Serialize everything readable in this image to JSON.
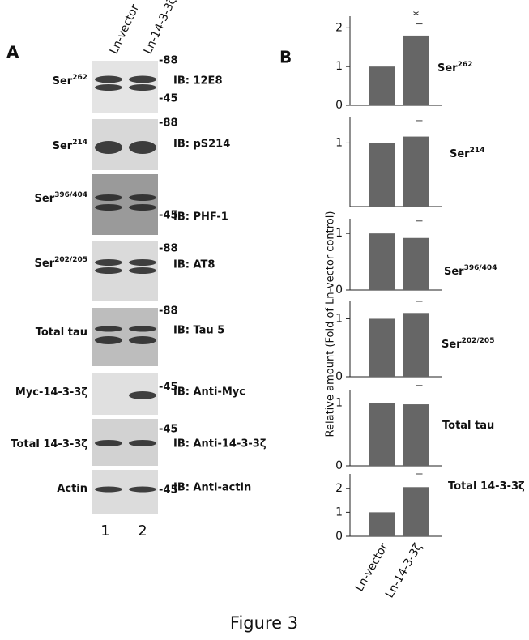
{
  "figure_caption": "Figure 3",
  "panel_a": {
    "label": "A",
    "lanes": [
      "Ln-vector",
      "Ln-14-3-3ζ"
    ],
    "lane_numbers": [
      "1",
      "2"
    ],
    "rows": [
      {
        "target": "Ser",
        "target_sup": "262",
        "markers": [
          "-88",
          "-45"
        ],
        "antibody": "IB: 12E8"
      },
      {
        "target": "Ser",
        "target_sup": "214",
        "markers": [
          "-88"
        ],
        "antibody": "IB: pS214"
      },
      {
        "target": "Ser",
        "target_sup": "396/404",
        "markers": [
          "-45"
        ],
        "antibody": "IB: PHF-1"
      },
      {
        "target": "Ser",
        "target_sup": "202/205",
        "markers": [
          "-88"
        ],
        "antibody": "IB: AT8"
      },
      {
        "target": "Total tau",
        "markers": [
          "-88"
        ],
        "antibody": "IB: Tau 5"
      },
      {
        "target": "Myc-14-3-3ζ",
        "markers": [
          "-45"
        ],
        "antibody": "IB: Anti-Myc"
      },
      {
        "target": "Total 14-3-3ζ",
        "markers": [
          "-45"
        ],
        "antibody": "IB: Anti-14-3-3ζ"
      },
      {
        "target": "Actin",
        "markers": [
          "-45"
        ],
        "antibody": "IB: Anti-actin"
      }
    ]
  },
  "panel_b": {
    "label": "B",
    "y_label": "Relative amount (Fold of Ln-vector control)"
  },
  "chart_data": [
    {
      "type": "bar",
      "label": "Ser",
      "label_sup": "262",
      "annotation": "*",
      "color": "#666666",
      "values": [
        1,
        1.8
      ],
      "errors": [
        null,
        0.3
      ],
      "ylim": [
        0,
        2.3
      ],
      "yticks": [
        0,
        1,
        2
      ]
    },
    {
      "type": "bar",
      "label": "Ser",
      "label_sup": "214",
      "color": "#666666",
      "values": [
        1,
        1.1
      ],
      "errors": [
        null,
        0.25
      ],
      "ylim": [
        0,
        1.4
      ],
      "yticks": [
        1
      ]
    },
    {
      "type": "bar",
      "label": "Ser",
      "label_sup": "396/404",
      "color": "#666666",
      "values": [
        1,
        0.92
      ],
      "errors": [
        null,
        0.3
      ],
      "ylim": [
        0,
        1.26
      ],
      "yticks": [
        0,
        1
      ]
    },
    {
      "type": "bar",
      "label": "Ser",
      "label_sup": "202/205",
      "color": "#666666",
      "values": [
        1,
        1.1
      ],
      "errors": [
        null,
        0.2
      ],
      "ylim": [
        0,
        1.3
      ],
      "yticks": [
        0,
        1
      ]
    },
    {
      "type": "bar",
      "label": "Total tau",
      "color": "#666666",
      "values": [
        1,
        0.98
      ],
      "errors": [
        null,
        0.3
      ],
      "ylim": [
        0,
        1.2
      ],
      "yticks": [
        0,
        1
      ]
    },
    {
      "type": "bar",
      "label": "Total 14-3-3ζ",
      "color": "#666666",
      "values": [
        1,
        2.05
      ],
      "errors": [
        null,
        0.55
      ],
      "ylim": [
        0,
        2.6
      ],
      "yticks": [
        0,
        1,
        2
      ],
      "categories": [
        "Ln-vector",
        "Ln-14-3-3ζ"
      ]
    }
  ]
}
